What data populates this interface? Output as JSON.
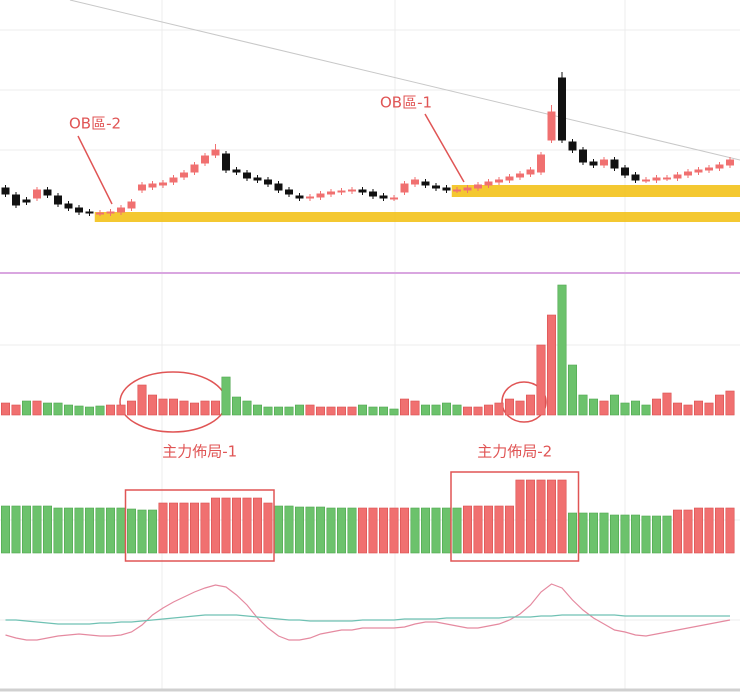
{
  "chart_data": [
    {
      "type": "candlestick",
      "ylim": [
        0,
        270
      ],
      "up_color": "#f07070",
      "down_color": "#111111",
      "categories": [
        null,
        null,
        null,
        null,
        null,
        null,
        null,
        null,
        null,
        null,
        null,
        null,
        null,
        null,
        null,
        null,
        null,
        null,
        null,
        null,
        null,
        null,
        null,
        null,
        null,
        null,
        null,
        null,
        null,
        null,
        null,
        null,
        null,
        null,
        null,
        null,
        null,
        null,
        null,
        null,
        null,
        null,
        null,
        null,
        null,
        null,
        null,
        null,
        null,
        null,
        null,
        null,
        null,
        null,
        null,
        null,
        null,
        null,
        null,
        null,
        null,
        null,
        null,
        null,
        null,
        null,
        null,
        null,
        null,
        null
      ],
      "open": [
        82,
        75,
        70,
        72,
        80,
        74,
        66,
        62,
        58,
        57,
        57,
        58,
        62,
        80,
        83,
        85,
        88,
        93,
        98,
        107,
        115,
        116,
        100,
        97,
        92,
        90,
        86,
        80,
        74,
        72,
        73,
        76,
        78,
        79,
        80,
        78,
        74,
        72,
        78,
        86,
        88,
        84,
        82,
        80,
        80,
        82,
        85,
        88,
        90,
        93,
        96,
        98,
        130,
        192,
        128,
        120,
        108,
        105,
        110,
        102,
        95,
        90,
        90,
        92,
        92,
        95,
        98,
        100,
        102,
        105
      ],
      "high": [
        85,
        78,
        73,
        83,
        83,
        77,
        69,
        65,
        61,
        60,
        61,
        65,
        71,
        88,
        89,
        90,
        95,
        100,
        108,
        117,
        126,
        119,
        103,
        100,
        95,
        93,
        89,
        83,
        77,
        76,
        79,
        81,
        82,
        83,
        83,
        81,
        77,
        75,
        89,
        93,
        91,
        87,
        85,
        83,
        85,
        88,
        91,
        93,
        96,
        99,
        103,
        118,
        165,
        198,
        131,
        123,
        111,
        113,
        113,
        105,
        98,
        93,
        95,
        95,
        98,
        101,
        103,
        105,
        108,
        113
      ],
      "low": [
        73,
        62,
        65,
        69,
        72,
        63,
        59,
        55,
        54,
        54,
        54,
        55,
        59,
        77,
        80,
        82,
        85,
        90,
        95,
        104,
        112,
        97,
        95,
        89,
        87,
        83,
        77,
        73,
        69,
        69,
        70,
        73,
        75,
        76,
        75,
        71,
        69,
        69,
        75,
        83,
        82,
        79,
        77,
        77,
        77,
        79,
        82,
        85,
        87,
        90,
        93,
        95,
        127,
        127,
        117,
        105,
        102,
        102,
        99,
        92,
        87,
        87,
        87,
        89,
        89,
        92,
        95,
        97,
        99,
        102
      ],
      "close": [
        76,
        65,
        68,
        80,
        75,
        66,
        62,
        58,
        57,
        57,
        58,
        62,
        68,
        85,
        86,
        87,
        92,
        97,
        105,
        114,
        120,
        100,
        98,
        92,
        90,
        86,
        80,
        76,
        72,
        73,
        76,
        78,
        79,
        80,
        78,
        74,
        72,
        72,
        86,
        90,
        85,
        82,
        80,
        80,
        82,
        85,
        88,
        90,
        93,
        96,
        100,
        115,
        158,
        130,
        120,
        108,
        105,
        110,
        102,
        95,
        90,
        90,
        92,
        92,
        95,
        98,
        100,
        102,
        105,
        110
      ],
      "zones": [
        {
          "text": "OB區-2",
          "low": 48,
          "high": 58,
          "start": 9,
          "color": "#f3c21b"
        },
        {
          "text": "OB區-1",
          "low": 73,
          "high": 85,
          "start": 43,
          "color": "#f3c21b"
        }
      ]
    },
    {
      "type": "bar",
      "ylim": [
        0,
        135
      ],
      "values": [
        12,
        10,
        14,
        14,
        12,
        12,
        10,
        9,
        8,
        9,
        10,
        10,
        14,
        30,
        20,
        16,
        16,
        14,
        12,
        14,
        14,
        38,
        18,
        14,
        10,
        8,
        8,
        8,
        10,
        10,
        8,
        8,
        8,
        8,
        10,
        8,
        8,
        6,
        16,
        14,
        10,
        10,
        12,
        10,
        8,
        8,
        10,
        12,
        16,
        14,
        20,
        70,
        100,
        130,
        50,
        20,
        16,
        14,
        20,
        12,
        14,
        10,
        16,
        22,
        12,
        10,
        14,
        12,
        20,
        24
      ],
      "colors": [
        "#f07070",
        "#f07070",
        "#6cc26c",
        "#f07070",
        "#6cc26c",
        "#6cc26c",
        "#6cc26c",
        "#6cc26c",
        "#6cc26c",
        "#6cc26c",
        "#f07070",
        "#f07070",
        "#f07070",
        "#f07070",
        "#f07070",
        "#f07070",
        "#f07070",
        "#f07070",
        "#f07070",
        "#f07070",
        "#f07070",
        "#6cc26c",
        "#6cc26c",
        "#6cc26c",
        "#6cc26c",
        "#6cc26c",
        "#6cc26c",
        "#6cc26c",
        "#6cc26c",
        "#f07070",
        "#f07070",
        "#f07070",
        "#f07070",
        "#f07070",
        "#6cc26c",
        "#6cc26c",
        "#6cc26c",
        "#6cc26c",
        "#f07070",
        "#f07070",
        "#6cc26c",
        "#6cc26c",
        "#6cc26c",
        "#6cc26c",
        "#f07070",
        "#f07070",
        "#f07070",
        "#f07070",
        "#f07070",
        "#f07070",
        "#f07070",
        "#f07070",
        "#f07070",
        "#6cc26c",
        "#6cc26c",
        "#6cc26c",
        "#6cc26c",
        "#f07070",
        "#6cc26c",
        "#6cc26c",
        "#6cc26c",
        "#6cc26c",
        "#f07070",
        "#f07070",
        "#f07070",
        "#f07070",
        "#f07070",
        "#f07070",
        "#f07070",
        "#f07070"
      ]
    },
    {
      "type": "bar",
      "ylim": [
        0,
        80
      ],
      "values": [
        47,
        47,
        47,
        47,
        47,
        45,
        45,
        45,
        45,
        45,
        45,
        45,
        44,
        43,
        43,
        50,
        50,
        50,
        50,
        50,
        55,
        55,
        55,
        55,
        55,
        50,
        47,
        47,
        46,
        46,
        46,
        45,
        45,
        45,
        45,
        45,
        45,
        45,
        45,
        45,
        45,
        45,
        45,
        45,
        47,
        47,
        47,
        47,
        47,
        73,
        73,
        73,
        73,
        73,
        40,
        40,
        40,
        40,
        38,
        38,
        38,
        37,
        37,
        37,
        43,
        43,
        45,
        45,
        45,
        45
      ],
      "colors": [
        "#6cc26c",
        "#6cc26c",
        "#6cc26c",
        "#6cc26c",
        "#6cc26c",
        "#6cc26c",
        "#6cc26c",
        "#6cc26c",
        "#6cc26c",
        "#6cc26c",
        "#6cc26c",
        "#6cc26c",
        "#6cc26c",
        "#6cc26c",
        "#6cc26c",
        "#f07070",
        "#f07070",
        "#f07070",
        "#f07070",
        "#f07070",
        "#f07070",
        "#f07070",
        "#f07070",
        "#f07070",
        "#f07070",
        "#f07070",
        "#6cc26c",
        "#6cc26c",
        "#6cc26c",
        "#6cc26c",
        "#6cc26c",
        "#6cc26c",
        "#6cc26c",
        "#6cc26c",
        "#f07070",
        "#f07070",
        "#f07070",
        "#f07070",
        "#f07070",
        "#6cc26c",
        "#6cc26c",
        "#6cc26c",
        "#6cc26c",
        "#6cc26c",
        "#f07070",
        "#f07070",
        "#f07070",
        "#f07070",
        "#f07070",
        "#f07070",
        "#f07070",
        "#f07070",
        "#f07070",
        "#f07070",
        "#6cc26c",
        "#6cc26c",
        "#6cc26c",
        "#6cc26c",
        "#6cc26c",
        "#6cc26c",
        "#6cc26c",
        "#6cc26c",
        "#6cc26c",
        "#6cc26c",
        "#f07070",
        "#f07070",
        "#f07070",
        "#f07070",
        "#f07070",
        "#f07070"
      ],
      "annotations": [
        {
          "text": "主力佈局-1",
          "start": 12,
          "end": 25
        },
        {
          "text": "主力佈局-2",
          "start": 43,
          "end": 54
        }
      ]
    },
    {
      "type": "line",
      "ylim": [
        0,
        100
      ],
      "series": [
        {
          "color": "#e58aa0",
          "values": [
            25,
            22,
            20,
            20,
            22,
            24,
            25,
            26,
            25,
            24,
            24,
            25,
            28,
            35,
            45,
            52,
            58,
            63,
            68,
            72,
            75,
            73,
            65,
            55,
            42,
            32,
            24,
            20,
            20,
            22,
            26,
            28,
            30,
            30,
            32,
            32,
            32,
            32,
            33,
            36,
            38,
            38,
            36,
            34,
            32,
            32,
            34,
            36,
            40,
            46,
            55,
            68,
            76,
            72,
            60,
            50,
            42,
            36,
            30,
            28,
            25,
            24,
            26,
            28,
            30,
            32,
            34,
            36,
            38,
            40
          ]
        },
        {
          "color": "#6fc1b3",
          "values": [
            40,
            40,
            39,
            38,
            37,
            36,
            36,
            36,
            36,
            37,
            37,
            38,
            38,
            39,
            40,
            41,
            42,
            43,
            44,
            45,
            45,
            45,
            45,
            44,
            43,
            42,
            41,
            40,
            40,
            39,
            39,
            39,
            39,
            39,
            40,
            40,
            40,
            40,
            41,
            41,
            41,
            41,
            42,
            42,
            42,
            42,
            42,
            42,
            43,
            43,
            43,
            44,
            44,
            45,
            45,
            45,
            45,
            45,
            45,
            44,
            44,
            44,
            44,
            44,
            44,
            44,
            44,
            44,
            44,
            44
          ]
        }
      ]
    }
  ]
}
